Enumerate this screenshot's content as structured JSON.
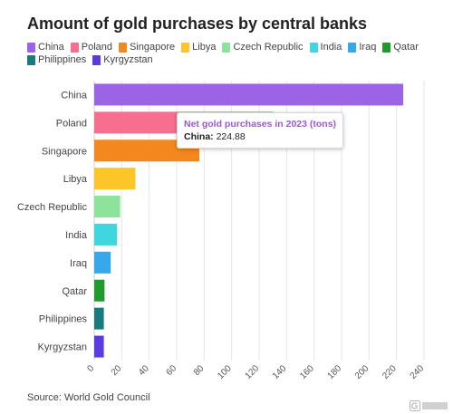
{
  "chart_data": {
    "type": "bar",
    "orientation": "horizontal",
    "title": "Amount of gold purchases by central banks",
    "categories": [
      "China",
      "Poland",
      "Singapore",
      "Libya",
      "Czech Republic",
      "India",
      "Iraq",
      "Qatar",
      "Philippines",
      "Kyrgyzstan"
    ],
    "values": [
      224.88,
      130.0,
      76.5,
      30.0,
      18.9,
      16.5,
      12.0,
      7.5,
      7.0,
      7.0
    ],
    "colors": [
      "#9b63e6",
      "#f76e8f",
      "#f5871f",
      "#fcc52a",
      "#8de39c",
      "#3ed7e0",
      "#36a7e8",
      "#1e9b2c",
      "#1a7b7f",
      "#5a3be0"
    ],
    "xlim": [
      0,
      240
    ],
    "xticks": [
      0,
      20,
      40,
      60,
      80,
      100,
      120,
      140,
      160,
      180,
      200,
      220,
      240
    ],
    "grid": true,
    "legend": "top"
  },
  "tooltip": {
    "title": "Net gold purchases in 2023 (tons)",
    "label": "China:",
    "value": "224.88"
  },
  "source": "Source: World Gold Council"
}
